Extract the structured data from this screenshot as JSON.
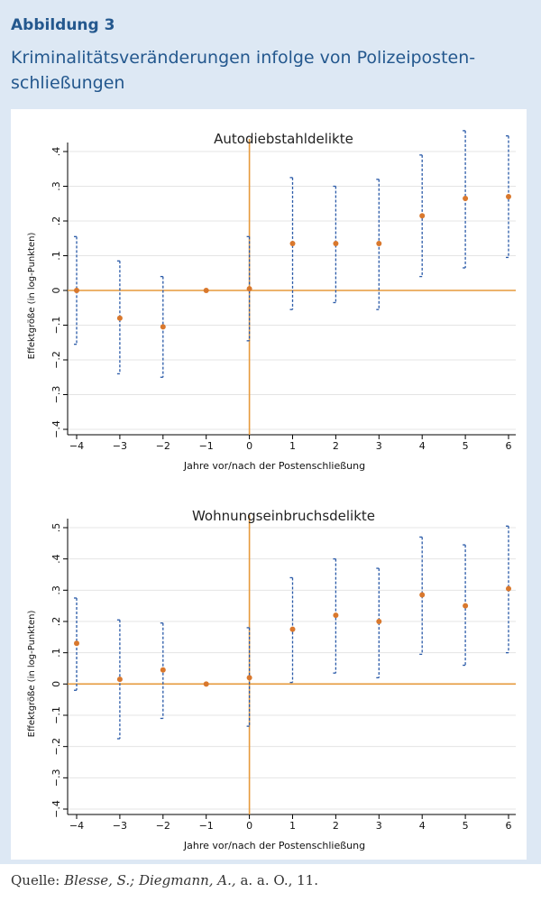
{
  "figure": {
    "label": "Abbildung 3",
    "title": "Kriminalitätsveränderungen infolge von Polizeiposten-schließungen"
  },
  "source": {
    "prefix": "Quelle: ",
    "authors": "Blesse, S.; Diegmann, A.,",
    "rest": " a. a. O., 11."
  },
  "colors": {
    "point": "#d9782d",
    "ci": "#2a5aa8",
    "reference_line": "#e69a3c",
    "grid": "#e4e4e4",
    "panel_background": "#dde8f4",
    "heading": "#24588e"
  },
  "chart_data": [
    {
      "type": "scatter",
      "title": "Autodiebstahldelikte",
      "xlabel": "Jahre vor/nach der Postenschließung",
      "ylabel": "Effektgröße (in log-Punkten)",
      "x": [
        -4,
        -3,
        -2,
        -1,
        0,
        1,
        2,
        3,
        4,
        5,
        6
      ],
      "y": [
        0.0,
        -0.08,
        -0.105,
        0.0,
        0.005,
        0.135,
        0.135,
        0.135,
        0.215,
        0.265,
        0.27
      ],
      "ci_low": [
        -0.155,
        -0.24,
        -0.25,
        null,
        -0.145,
        -0.055,
        -0.035,
        -0.055,
        0.04,
        0.065,
        0.095
      ],
      "ci_high": [
        0.155,
        0.085,
        0.04,
        null,
        0.155,
        0.325,
        0.3,
        0.32,
        0.39,
        0.46,
        0.445
      ],
      "xticks": [
        -4,
        -3,
        -2,
        -1,
        0,
        1,
        2,
        3,
        4,
        5,
        6
      ],
      "xtick_labels": [
        "−4",
        "−3",
        "−2",
        "−1",
        "0",
        "1",
        "2",
        "3",
        "4",
        "5",
        "6"
      ],
      "yticks": [
        -0.4,
        -0.3,
        -0.2,
        -0.1,
        0,
        0.1,
        0.2,
        0.3,
        0.4
      ],
      "ytick_labels": [
        "−.4",
        "−.3",
        "−.2",
        "−.1",
        "0",
        ".1",
        ".2",
        ".3",
        ".4"
      ],
      "xlim": [
        -4,
        6
      ],
      "ylim": [
        -0.4,
        0.4
      ],
      "reference_lines": {
        "x": 0,
        "y": 0
      },
      "grid": true
    },
    {
      "type": "scatter",
      "title": "Wohnungseinbruchsdelikte",
      "xlabel": "Jahre vor/nach der Postenschließung",
      "ylabel": "Effektgröße (in log-Punkten)",
      "x": [
        -4,
        -3,
        -2,
        -1,
        0,
        1,
        2,
        3,
        4,
        5,
        6
      ],
      "y": [
        0.13,
        0.015,
        0.045,
        0.0,
        0.02,
        0.175,
        0.22,
        0.2,
        0.285,
        0.25,
        0.305
      ],
      "ci_low": [
        -0.02,
        -0.175,
        -0.11,
        null,
        -0.135,
        0.005,
        0.035,
        0.02,
        0.095,
        0.06,
        0.1
      ],
      "ci_high": [
        0.275,
        0.205,
        0.195,
        null,
        0.18,
        0.34,
        0.4,
        0.37,
        0.47,
        0.445,
        0.505
      ],
      "xticks": [
        -4,
        -3,
        -2,
        -1,
        0,
        1,
        2,
        3,
        4,
        5,
        6
      ],
      "xtick_labels": [
        "−4",
        "−3",
        "−2",
        "−1",
        "0",
        "1",
        "2",
        "3",
        "4",
        "5",
        "6"
      ],
      "yticks": [
        -0.4,
        -0.3,
        -0.2,
        -0.1,
        0,
        0.1,
        0.2,
        0.3,
        0.4,
        0.5
      ],
      "ytick_labels": [
        "−.4",
        "−.3",
        "−.2",
        "−.1",
        "0",
        ".1",
        ".2",
        ".3",
        ".4",
        ".5"
      ],
      "xlim": [
        -4,
        6
      ],
      "ylim": [
        -0.4,
        0.5
      ],
      "reference_lines": {
        "x": 0,
        "y": 0
      },
      "grid": true
    }
  ]
}
